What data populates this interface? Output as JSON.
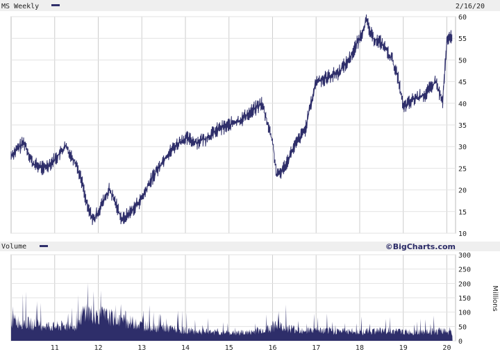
{
  "chart_data": [
    {
      "type": "line",
      "title": "MS Weekly",
      "date_label": "2/16/20",
      "series": [
        {
          "name": "MS Weekly",
          "color": "#2e2e6a",
          "x": [
            "2010.0",
            "2010.3",
            "2010.5",
            "2010.75",
            "2011.0",
            "2011.25",
            "2011.5",
            "2011.65",
            "2011.75",
            "2011.9",
            "2012.0",
            "2012.25",
            "2012.4",
            "2012.55",
            "2012.75",
            "2013.0",
            "2013.25",
            "2013.5",
            "2013.75",
            "2014.0",
            "2014.25",
            "2014.5",
            "2014.75",
            "2015.0",
            "2015.25",
            "2015.5",
            "2015.75",
            "2015.9",
            "2016.0",
            "2016.1",
            "2016.25",
            "2016.5",
            "2016.75",
            "2017.0",
            "2017.25",
            "2017.5",
            "2017.75",
            "2018.0",
            "2018.15",
            "2018.3",
            "2018.5",
            "2018.75",
            "2018.9",
            "2019.0",
            "2019.25",
            "2019.5",
            "2019.75",
            "2019.9",
            "2020.0",
            "2020.13"
          ],
          "y": [
            28,
            31,
            26,
            25,
            27,
            30,
            26,
            21,
            16,
            13,
            15,
            20,
            17,
            13,
            15,
            18,
            23,
            27,
            30,
            32,
            31,
            32,
            34,
            35,
            36,
            38,
            40,
            35,
            31,
            23,
            25,
            30,
            34,
            45,
            46,
            47,
            50,
            55,
            59,
            55,
            54,
            50,
            45,
            39,
            41,
            42,
            45,
            40,
            54,
            56
          ]
        }
      ],
      "ylim": [
        10,
        60
      ],
      "yticks": [
        "10",
        "15",
        "20",
        "25",
        "30",
        "35",
        "40",
        "45",
        "50",
        "55",
        "60"
      ],
      "xtick_labels": [
        "11",
        "12",
        "13",
        "14",
        "15",
        "16",
        "17",
        "18",
        "19",
        "20"
      ],
      "grid": true
    },
    {
      "type": "bar",
      "title": "Volume",
      "ylabel": "Millions",
      "color": "#2e2e6a",
      "source": "©BigCharts.com",
      "ylim": [
        0,
        300
      ],
      "yticks": [
        "0",
        "50",
        "100",
        "150",
        "200",
        "250",
        "300"
      ],
      "x": [
        "2010.0",
        "2010.5",
        "2011.0",
        "2011.5",
        "2011.7",
        "2011.9",
        "2012.2",
        "2012.5",
        "2012.8",
        "2013.0",
        "2013.5",
        "2014.0",
        "2014.5",
        "2015.0",
        "2015.5",
        "2016.0",
        "2016.1",
        "2016.5",
        "2017.0",
        "2017.5",
        "2018.0",
        "2018.5",
        "2019.0",
        "2019.5",
        "2019.9",
        "2020.13"
      ],
      "values": [
        80,
        65,
        55,
        60,
        120,
        100,
        95,
        80,
        70,
        60,
        50,
        40,
        35,
        30,
        33,
        50,
        60,
        45,
        40,
        38,
        35,
        40,
        35,
        33,
        38,
        30
      ]
    }
  ]
}
